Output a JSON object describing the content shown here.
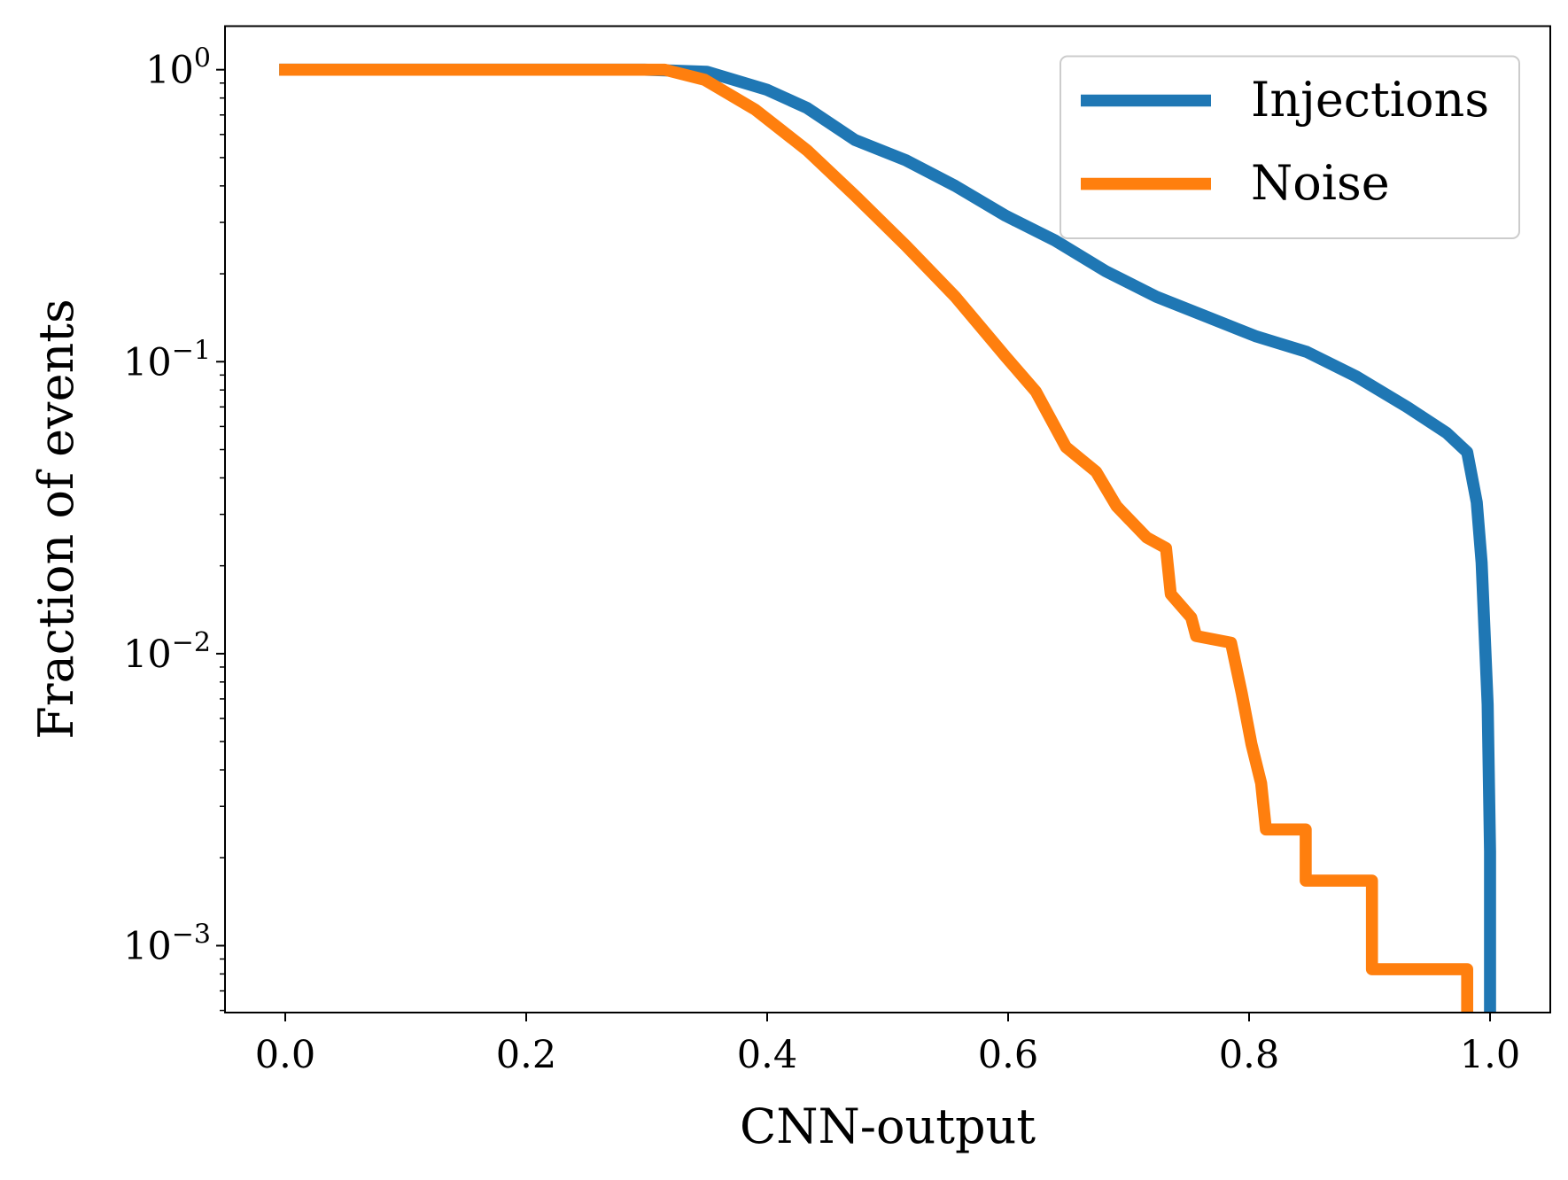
{
  "chart_data": {
    "type": "line",
    "title": "",
    "xlabel": "CNN-output",
    "ylabel": "Fraction of events",
    "xlim": [
      -0.05,
      1.05
    ],
    "ylim": [
      0.00059,
      1.41
    ],
    "yscale": "log",
    "grid": false,
    "legend_placement": "top-right",
    "xticks": [
      "0.0",
      "0.2",
      "0.4",
      "0.6",
      "0.8",
      "1.0"
    ],
    "xtick_values": [
      0,
      0.2,
      0.4,
      0.6,
      0.8,
      1.0
    ],
    "yticks": [
      {
        "value": 1,
        "base": "10",
        "exp": "0"
      },
      {
        "value": 0.1,
        "base": "10",
        "exp": "−1"
      },
      {
        "value": 0.01,
        "base": "10",
        "exp": "−2"
      },
      {
        "value": 0.001,
        "base": "10",
        "exp": "−3"
      }
    ],
    "series": [
      {
        "name": "Injections",
        "color": "#1f77b4",
        "x": [
          0,
          0.298,
          0.35,
          0.4,
          0.433,
          0.473,
          0.515,
          0.556,
          0.598,
          0.639,
          0.681,
          0.723,
          0.764,
          0.806,
          0.848,
          0.889,
          0.931,
          0.964,
          0.981,
          0.989,
          0.993,
          0.998,
          1.0,
          1.0
        ],
        "y": [
          1,
          1,
          0.984,
          0.853,
          0.74,
          0.574,
          0.49,
          0.4,
          0.316,
          0.26,
          0.204,
          0.167,
          0.143,
          0.122,
          0.108,
          0.089,
          0.07,
          0.057,
          0.049,
          0.033,
          0.0205,
          0.0067,
          0.0021,
          0.00059
        ]
      },
      {
        "name": "Noise",
        "color": "#ff7f0e",
        "x": [
          0,
          0.315,
          0.348,
          0.39,
          0.433,
          0.473,
          0.515,
          0.556,
          0.598,
          0.623,
          0.648,
          0.673,
          0.69,
          0.715,
          0.731,
          0.735,
          0.752,
          0.756,
          0.785,
          0.794,
          0.802,
          0.81,
          0.814,
          0.847,
          0.847,
          0.902,
          0.902,
          0.981,
          0.981
        ],
        "y": [
          1,
          1,
          0.924,
          0.73,
          0.53,
          0.37,
          0.25,
          0.167,
          0.104,
          0.079,
          0.051,
          0.042,
          0.032,
          0.025,
          0.023,
          0.016,
          0.0133,
          0.0115,
          0.0109,
          0.0073,
          0.0049,
          0.0036,
          0.0025,
          0.0025,
          0.00167,
          0.00167,
          0.00083,
          0.00083,
          0.00059
        ]
      }
    ]
  }
}
